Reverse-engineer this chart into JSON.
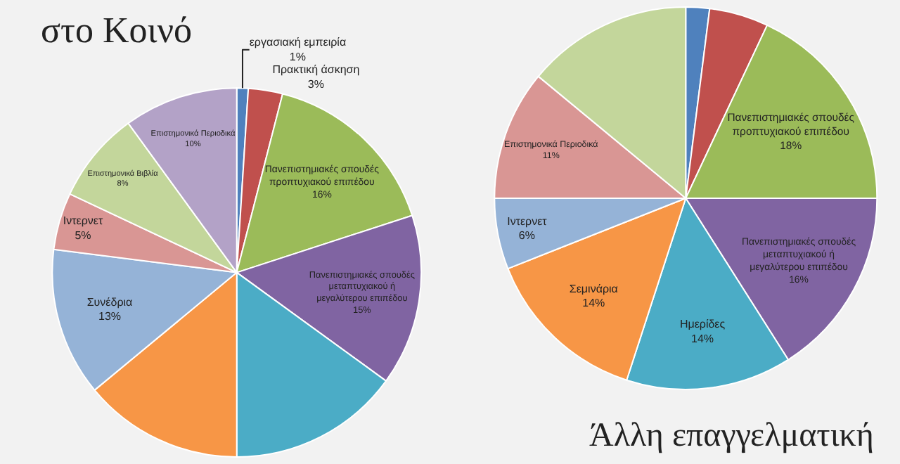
{
  "chart_data": [
    {
      "type": "pie",
      "title": "στο Κοινό",
      "legend": false,
      "categories": [
        "εργασιακή εμπειρία",
        "Πρακτική άσκηση",
        "Πανεπιστημιακές σπουδές προπτυχιακού επιπέδου",
        "Πανεπιστημιακές σπουδές μεταπτυχιακού ή μεγαλύτερου επιπέδου",
        null,
        null,
        "Συνέδρια",
        "Ιντερνετ",
        "Επιστημονικά Βιβλία",
        "Επιστημονικά Περιοδικά"
      ],
      "values": [
        1,
        3,
        16,
        15,
        15,
        14,
        13,
        5,
        8,
        10
      ],
      "value_labels": [
        "1%",
        "3%",
        "16%",
        "15%",
        null,
        null,
        "13%",
        "5%",
        "8%",
        "10%"
      ],
      "colors": [
        "#4f81bd",
        "#c0504d",
        "#9bbb59",
        "#8064a2",
        "#4bacc6",
        "#f79646",
        "#95b3d7",
        "#d99694",
        "#c3d69b",
        "#b3a2c7"
      ]
    },
    {
      "type": "pie",
      "legend": false,
      "annotations": [
        "Άλλη επαγγελματική"
      ],
      "categories": [
        null,
        null,
        "Πανεπιστημιακές σπουδές προπτυχιακού επιπέδου",
        "Πανεπιστημιακές σπουδές μεταπτυχιακού ή μεγαλύτερου επιπέδου",
        "Ημερίδες",
        "Σεμινάρια",
        "Ιντερνετ",
        "Επιστημονικά Περιοδικά",
        null
      ],
      "values": [
        2,
        5,
        18,
        16,
        14,
        14,
        6,
        11,
        14
      ],
      "value_labels": [
        null,
        null,
        "18%",
        "16%",
        "14%",
        "14%",
        "6%",
        "11%",
        null
      ],
      "colors": [
        "#4f81bd",
        "#c0504d",
        "#9bbb59",
        "#8064a2",
        "#4bacc6",
        "#f79646",
        "#95b3d7",
        "#d99694",
        "#c3d69b"
      ]
    }
  ]
}
